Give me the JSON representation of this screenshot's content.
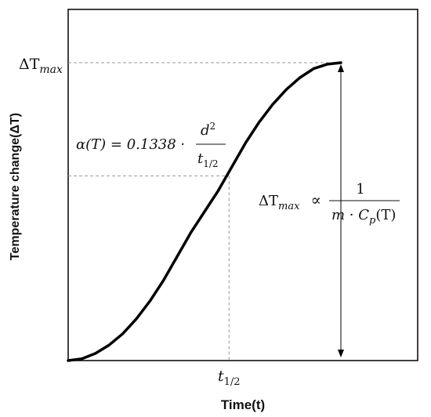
{
  "chart_data": {
    "type": "line",
    "xlabel": "Time(t)",
    "ylabel": "Temperature change(ΔT)",
    "x_tick_label": "t1/2",
    "y_tick_label": "ΔTmax",
    "series": [
      {
        "shape": "sigmoid",
        "points": [
          {
            "x": 0.0,
            "y": 0.0
          },
          {
            "x": 0.05,
            "y": 0.006
          },
          {
            "x": 0.1,
            "y": 0.024
          },
          {
            "x": 0.15,
            "y": 0.052
          },
          {
            "x": 0.2,
            "y": 0.09
          },
          {
            "x": 0.25,
            "y": 0.14
          },
          {
            "x": 0.3,
            "y": 0.2
          },
          {
            "x": 0.35,
            "y": 0.27
          },
          {
            "x": 0.4,
            "y": 0.35
          },
          {
            "x": 0.45,
            "y": 0.43
          },
          {
            "x": 0.5,
            "y": 0.5
          },
          {
            "x": 0.55,
            "y": 0.57
          },
          {
            "x": 0.6,
            "y": 0.65
          },
          {
            "x": 0.65,
            "y": 0.73
          },
          {
            "x": 0.7,
            "y": 0.8
          },
          {
            "x": 0.75,
            "y": 0.86
          },
          {
            "x": 0.8,
            "y": 0.91
          },
          {
            "x": 0.85,
            "y": 0.95
          },
          {
            "x": 0.9,
            "y": 0.98
          },
          {
            "x": 0.95,
            "y": 0.995
          },
          {
            "x": 1.0,
            "y": 1.0
          }
        ]
      }
    ],
    "x_half": 0.59,
    "y_half": 0.62,
    "grid": false,
    "legend": "none"
  },
  "annotations": {
    "alpha_lhs": "α(T) = 0.1338 ·",
    "alpha_num": "d",
    "alpha_num_sup": "2",
    "alpha_den": "t",
    "alpha_den_sub": "1/2",
    "dt_lhs": "ΔT",
    "dt_lhs_sub": "max",
    "dt_prop": "∝",
    "dt_num": "1",
    "dt_den": "m · C",
    "dt_den_sub": "p",
    "dt_den_tail": "(T)",
    "ytick_main": "ΔT",
    "ytick_sub": "max",
    "xtick_main": "t",
    "xtick_sub": "1/2"
  }
}
